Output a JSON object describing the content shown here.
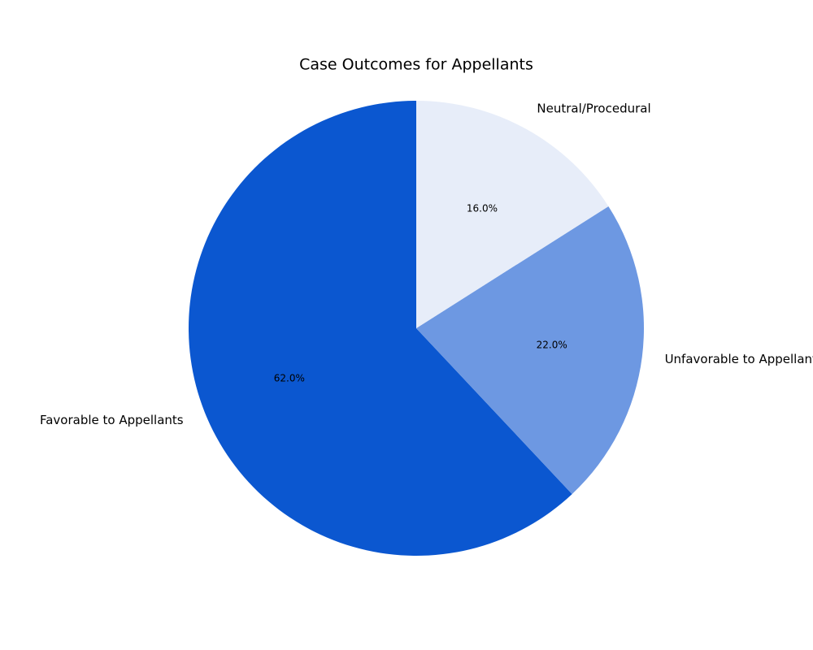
{
  "chart_data": {
    "type": "pie",
    "title": "Case Outcomes for Appellants",
    "categories": [
      "Favorable to Appellants",
      "Unfavorable to Appellants",
      "Neutral/Procedural"
    ],
    "values": [
      62,
      22,
      16
    ],
    "value_labels": [
      "62.0%",
      "22.0%",
      "16.0%"
    ],
    "colors": [
      "#0b57d0",
      "#6d98e2",
      "#e7edf9"
    ]
  }
}
